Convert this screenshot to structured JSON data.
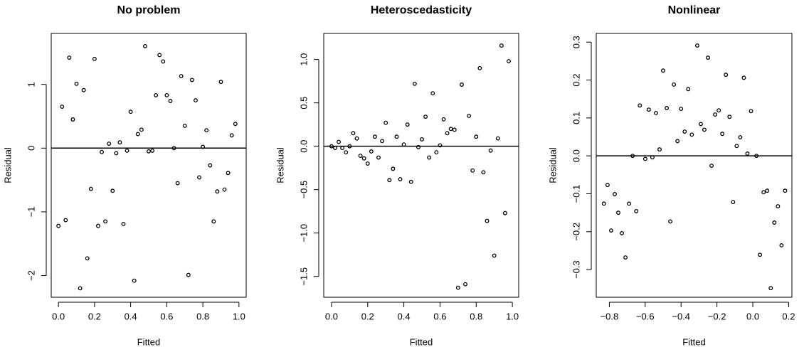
{
  "chart_data": [
    {
      "type": "scatter",
      "title": "No problem",
      "x_label": "Fitted",
      "y_label": "Residual",
      "color": "#000000",
      "hline": 0,
      "xlim": [
        -0.04,
        1.04
      ],
      "ylim": [
        -2.34,
        1.8
      ],
      "xticks": [
        {
          "value": 0,
          "label": "0.0"
        },
        0.2,
        0.4,
        0.6,
        0.8,
        {
          "value": 1,
          "label": "1.0"
        }
      ],
      "yticks": [
        {
          "value": -2,
          "label": "−2"
        },
        {
          "value": -1,
          "label": "−1"
        },
        0,
        1
      ],
      "x": [
        0,
        0.02,
        0.04,
        0.06,
        0.08,
        0.1,
        0.12,
        0.14,
        0.16,
        0.18,
        0.2,
        0.22,
        0.24,
        0.26,
        0.28,
        0.3,
        0.32,
        0.34,
        0.36,
        0.38,
        0.4,
        0.42,
        0.44,
        0.46,
        0.48,
        0.5,
        0.52,
        0.54,
        0.56,
        0.58,
        0.6,
        0.62,
        0.64,
        0.66,
        0.68,
        0.7,
        0.72,
        0.74,
        0.76,
        0.78,
        0.8,
        0.82,
        0.84,
        0.86,
        0.88,
        0.9,
        0.92,
        0.94,
        0.96,
        0.98
      ],
      "values": [
        -1.22,
        0.65,
        -1.13,
        1.42,
        0.45,
        1.01,
        -2.2,
        0.91,
        -1.73,
        -0.64,
        1.4,
        -1.22,
        -0.06,
        -1.15,
        0.07,
        -0.67,
        -0.08,
        0.09,
        -1.19,
        -0.04,
        0.57,
        -2.08,
        0.22,
        0.29,
        1.6,
        -0.05,
        -0.04,
        0.83,
        1.46,
        1.36,
        0.83,
        0.74,
        0,
        -0.55,
        1.13,
        0.35,
        -1.99,
        1.07,
        0.75,
        -0.46,
        0.02,
        0.28,
        -0.27,
        -1.15,
        -0.68,
        1.04,
        -0.65,
        -0.39,
        0.2,
        0.38
      ]
    },
    {
      "type": "scatter",
      "title": "Heteroscedasticity",
      "x_label": "Fitted",
      "y_label": "Residual",
      "color": "#000000",
      "hline": 0,
      "xlim": [
        -0.043,
        1.035
      ],
      "ylim": [
        -1.74,
        1.3
      ],
      "xticks": [
        {
          "value": 0,
          "label": "0.0"
        },
        0.2,
        0.4,
        0.6,
        0.8,
        {
          "value": 1,
          "label": "1.0"
        }
      ],
      "yticks": [
        {
          "value": -1.5,
          "label": "−1.5"
        },
        {
          "value": -1,
          "label": "−1.0"
        },
        {
          "value": -0.5,
          "label": "−0.5"
        },
        {
          "value": 0,
          "label": "0.0"
        },
        0.5,
        {
          "value": 1,
          "label": "1.0"
        }
      ],
      "x": [
        0,
        0.02,
        0.04,
        0.06,
        0.08,
        0.1,
        0.12,
        0.14,
        0.16,
        0.18,
        0.2,
        0.22,
        0.24,
        0.26,
        0.28,
        0.3,
        0.32,
        0.34,
        0.36,
        0.38,
        0.4,
        0.42,
        0.44,
        0.46,
        0.48,
        0.5,
        0.52,
        0.54,
        0.56,
        0.58,
        0.6,
        0.62,
        0.64,
        0.66,
        0.68,
        0.7,
        0.72,
        0.74,
        0.76,
        0.78,
        0.8,
        0.82,
        0.84,
        0.86,
        0.88,
        0.9,
        0.92,
        0.94,
        0.96,
        0.98
      ],
      "values": [
        0,
        -0.02,
        0.05,
        -0.02,
        -0.07,
        0,
        0.15,
        0.09,
        -0.11,
        -0.14,
        -0.2,
        -0.06,
        0.11,
        -0.13,
        0.06,
        0.27,
        -0.39,
        -0.26,
        0.11,
        -0.38,
        0.02,
        0.25,
        -0.41,
        0.72,
        -0.01,
        0.08,
        0.34,
        -0.13,
        0.61,
        -0.07,
        0.01,
        0.31,
        0.15,
        0.2,
        0.19,
        -1.63,
        0.71,
        -1.59,
        0.35,
        -0.28,
        0.11,
        0.9,
        -0.3,
        -0.86,
        -0.05,
        -1.26,
        0.09,
        1.16,
        -0.77,
        0.98
      ]
    },
    {
      "type": "scatter",
      "title": "Nonlinear",
      "x_label": "Fitted",
      "y_label": "Residual",
      "color": "#000000",
      "hline": 0,
      "xlim": [
        -0.873,
        0.218
      ],
      "ylim": [
        -0.373,
        0.323
      ],
      "xticks": [
        {
          "value": -0.8,
          "label": "−0.8"
        },
        {
          "value": -0.6,
          "label": "−0.6"
        },
        {
          "value": -0.4,
          "label": "−0.4"
        },
        {
          "value": -0.2,
          "label": "−0.2"
        },
        {
          "value": 0,
          "label": "0.0"
        },
        0.2
      ],
      "yticks": [
        {
          "value": -0.3,
          "label": "−0.3"
        },
        {
          "value": -0.2,
          "label": "−0.2"
        },
        {
          "value": -0.1,
          "label": "−0.1"
        },
        {
          "value": 0,
          "label": "0.0"
        },
        0.1,
        0.2,
        0.3
      ],
      "x": [
        -0.83,
        -0.81,
        -0.79,
        -0.77,
        -0.75,
        -0.73,
        -0.71,
        -0.69,
        -0.67,
        -0.65,
        -0.63,
        -0.6,
        -0.58,
        -0.56,
        -0.54,
        -0.52,
        -0.5,
        -0.48,
        -0.46,
        -0.44,
        -0.42,
        -0.4,
        -0.38,
        -0.36,
        -0.34,
        -0.31,
        -0.29,
        -0.27,
        -0.25,
        -0.23,
        -0.21,
        -0.19,
        -0.17,
        -0.15,
        -0.13,
        -0.11,
        -0.09,
        -0.07,
        -0.05,
        -0.03,
        -0.01,
        0.02,
        0.04,
        0.06,
        0.08,
        0.1,
        0.12,
        0.14,
        0.16,
        0.18
      ],
      "values": [
        -0.126,
        -0.077,
        -0.197,
        -0.101,
        -0.15,
        -0.204,
        -0.268,
        -0.126,
        0,
        -0.146,
        0.133,
        -0.008,
        0.122,
        -0.004,
        0.113,
        0.017,
        0.225,
        0.126,
        -0.173,
        0.188,
        0.039,
        0.124,
        0.064,
        0.176,
        0.056,
        0.291,
        0.084,
        0.069,
        0.259,
        -0.026,
        0.109,
        0.12,
        0.058,
        0.214,
        0.103,
        -0.122,
        0.026,
        0.049,
        0.206,
        0.006,
        0.118,
        0,
        -0.261,
        -0.096,
        -0.092,
        -0.349,
        -0.176,
        -0.133,
        -0.236,
        -0.092
      ]
    }
  ]
}
